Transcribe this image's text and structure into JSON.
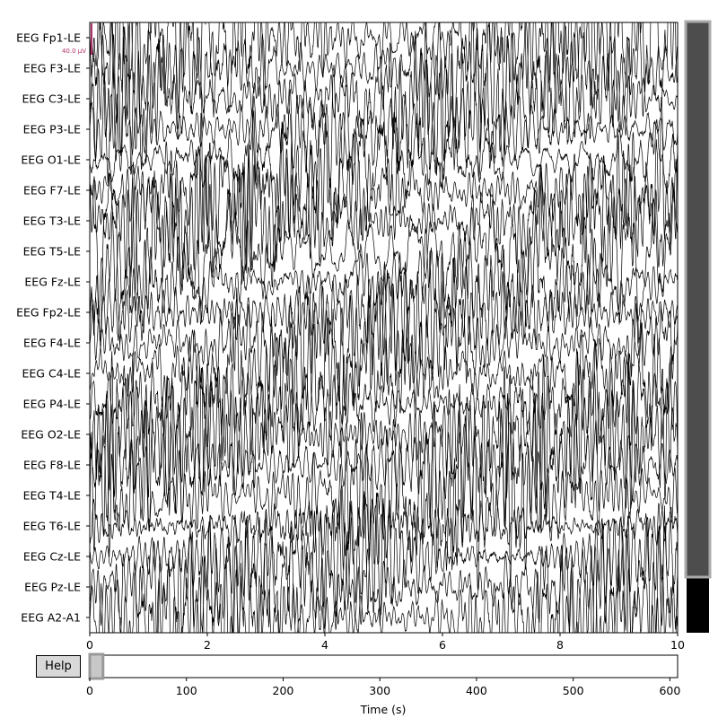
{
  "channels": [
    "EEG Fp1-LE",
    "EEG F3-LE",
    "EEG C3-LE",
    "EEG P3-LE",
    "EEG O1-LE",
    "EEG F7-LE",
    "EEG T3-LE",
    "EEG T5-LE",
    "EEG Fz-LE",
    "EEG Fp2-LE",
    "EEG F4-LE",
    "EEG C4-LE",
    "EEG P4-LE",
    "EEG O2-LE",
    "EEG F8-LE",
    "EEG T4-LE",
    "EEG T6-LE",
    "EEG Cz-LE",
    "EEG Pz-LE",
    "EEG A2-A1"
  ],
  "scale_bar": {
    "label": "40.0 µV",
    "color": "#b0306a"
  },
  "main_axis": {
    "range": [
      0,
      10
    ],
    "ticks": [
      "0",
      "2",
      "4",
      "6",
      "8",
      "10"
    ]
  },
  "overview_axis": {
    "range": [
      0,
      608
    ],
    "ticks": [
      "0",
      "100",
      "200",
      "300",
      "400",
      "500",
      "600"
    ],
    "xlabel": "Time (s)",
    "window": [
      0,
      10
    ]
  },
  "help_button": {
    "label": "Help"
  },
  "colors": {
    "trace": "#000000",
    "scrollbar_thumb": "#4d4d4d",
    "scrollbar_rest": "#000000",
    "scale_bar": "#b0306a",
    "help_bg": "#d9d9d9"
  }
}
